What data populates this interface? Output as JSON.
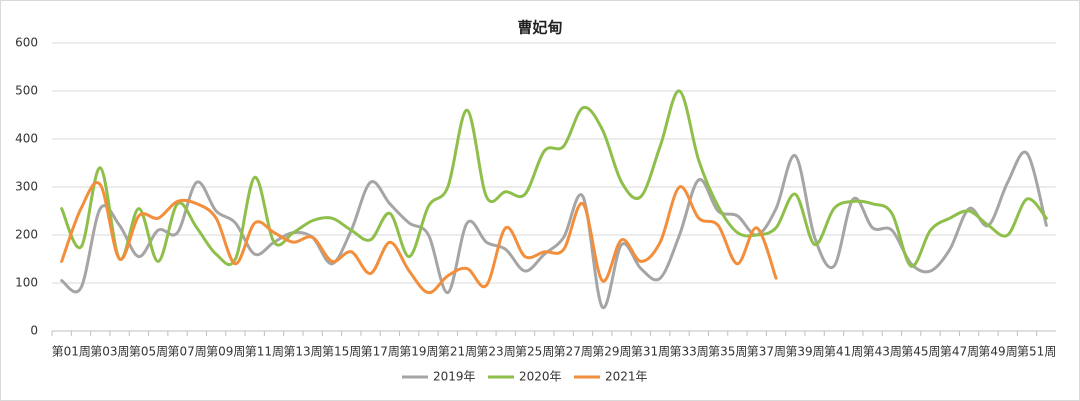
{
  "chart_data": {
    "type": "line",
    "title": "曹妃甸",
    "categories": [
      "第01周",
      null,
      "第03周",
      null,
      "第05周",
      null,
      "第07周",
      null,
      "第09周",
      null,
      "第11周",
      null,
      "第13周",
      null,
      "第15周",
      null,
      "第17周",
      null,
      "第19周",
      null,
      "第21周",
      null,
      "第23周",
      null,
      "第25周",
      null,
      "第27周",
      null,
      "第29周",
      null,
      "第31周",
      null,
      "第33周",
      null,
      "第35周",
      null,
      "第37周",
      null,
      "第39周",
      null,
      "第41周",
      null,
      "第43周",
      null,
      "第45周",
      null,
      "第47周",
      null,
      "第49周",
      null,
      "第51周",
      null
    ],
    "series": [
      {
        "name": "2019年",
        "color": "#a5a5a5",
        "values": [
          105,
          90,
          255,
          220,
          155,
          210,
          205,
          310,
          250,
          225,
          160,
          185,
          205,
          195,
          140,
          210,
          310,
          265,
          225,
          200,
          80,
          225,
          185,
          170,
          125,
          160,
          195,
          280,
          50,
          180,
          130,
          110,
          200,
          315,
          250,
          240,
          200,
          255,
          365,
          195,
          135,
          275,
          215,
          210,
          140,
          125,
          170,
          255,
          220,
          310,
          370,
          220
        ]
      },
      {
        "name": "2020年",
        "color": "#8fbf4b",
        "values": [
          255,
          175,
          340,
          150,
          255,
          145,
          265,
          215,
          160,
          150,
          320,
          185,
          205,
          230,
          235,
          210,
          190,
          245,
          155,
          260,
          300,
          460,
          280,
          290,
          285,
          375,
          385,
          465,
          420,
          310,
          280,
          385,
          500,
          355,
          260,
          205,
          200,
          215,
          285,
          180,
          255,
          270,
          265,
          245,
          135,
          210,
          235,
          250,
          220,
          200,
          275,
          235
        ]
      },
      {
        "name": "2021年",
        "color": "#f28e3c",
        "values": [
          145,
          255,
          305,
          150,
          240,
          235,
          270,
          265,
          235,
          140,
          225,
          205,
          185,
          195,
          145,
          165,
          120,
          185,
          125,
          80,
          115,
          130,
          95,
          215,
          155,
          165,
          170,
          265,
          105,
          190,
          145,
          185,
          300,
          235,
          220,
          140,
          215,
          110,
          null,
          null,
          null,
          null,
          null,
          null,
          null,
          null,
          null,
          null,
          null,
          null,
          null,
          null
        ]
      }
    ],
    "ylim": [
      0,
      600
    ],
    "yticks": [
      0,
      100,
      200,
      300,
      400,
      500,
      600
    ],
    "grid": true,
    "legend": "bottom"
  }
}
